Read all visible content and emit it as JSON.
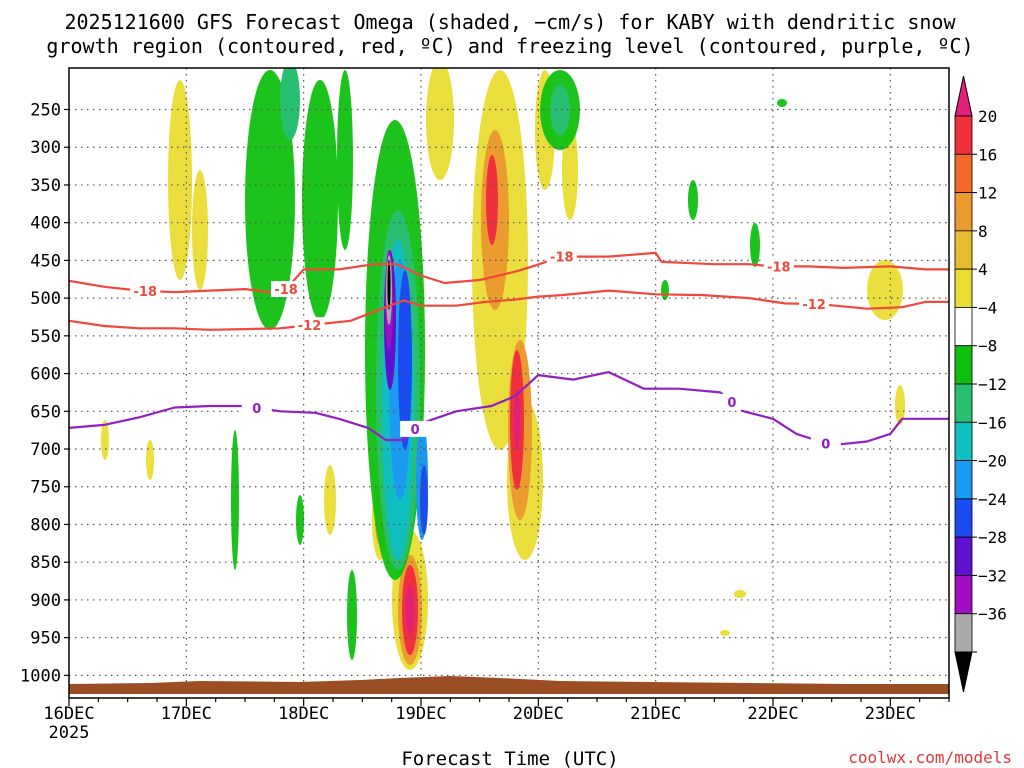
{
  "chart_data": {
    "type": "time-height contour",
    "title_line1": "2025121600 GFS Forecast Omega (shaded, −cm/s) for KABY with dendritic snow",
    "title_line2": "growth region (contoured, red, ºC) and freezing level (contoured, purple, ºC)",
    "xlabel": "Forecast Time (UTC)",
    "credit": "coolwx.com/models",
    "x_start_label_year": "2025",
    "x_ticks": [
      {
        "day": 0,
        "label": "16DEC"
      },
      {
        "day": 1,
        "label": "17DEC"
      },
      {
        "day": 2,
        "label": "18DEC"
      },
      {
        "day": 3,
        "label": "19DEC"
      },
      {
        "day": 4,
        "label": "20DEC"
      },
      {
        "day": 5,
        "label": "21DEC"
      },
      {
        "day": 6,
        "label": "22DEC"
      },
      {
        "day": 7,
        "label": "23DEC"
      }
    ],
    "xlim_days": [
      0,
      7.5
    ],
    "ylim_hpa": [
      1030,
      195
    ],
    "y_ticks": [
      250,
      300,
      350,
      400,
      450,
      500,
      550,
      600,
      650,
      700,
      750,
      800,
      850,
      900,
      950,
      1000
    ],
    "colorbar": {
      "labels": [
        "20",
        "16",
        "12",
        "8",
        "4",
        "−4",
        "−8",
        "−12",
        "−16",
        "−20",
        "−24",
        "−28",
        "−32",
        "−36"
      ],
      "colors": [
        "#f0303c",
        "#f26a2a",
        "#eb9c2e",
        "#e6bd2f",
        "#e9dd33",
        "#ffffff",
        "#10c010",
        "#28c070",
        "#10c0c0",
        "#1a9af0",
        "#1a4cf0",
        "#6010d0",
        "#a010c0",
        "#aaaaaa"
      ],
      "top_arrow_color": "#e0207a",
      "bottom_arrow_color": "#000000"
    },
    "contours": [
      {
        "name": "-18 C",
        "color": "#f0483c",
        "label": "-18",
        "label_days": [
          0.65,
          1.85,
          4.2,
          6.05
        ],
        "points": [
          [
            0,
            477
          ],
          [
            0.3,
            485
          ],
          [
            0.6,
            490
          ],
          [
            0.9,
            492
          ],
          [
            1.2,
            490
          ],
          [
            1.5,
            488
          ],
          [
            1.7,
            492
          ],
          [
            1.85,
            488
          ],
          [
            2.0,
            462
          ],
          [
            2.3,
            462
          ],
          [
            2.6,
            455
          ],
          [
            2.8,
            455
          ],
          [
            3.0,
            470
          ],
          [
            3.2,
            480
          ],
          [
            3.5,
            476
          ],
          [
            3.8,
            465
          ],
          [
            3.95,
            458
          ],
          [
            4.2,
            445
          ],
          [
            4.6,
            445
          ],
          [
            5.0,
            440
          ],
          [
            5.05,
            452
          ],
          [
            5.5,
            455
          ],
          [
            5.8,
            455
          ],
          [
            6.0,
            458
          ],
          [
            6.3,
            458
          ],
          [
            6.6,
            460
          ],
          [
            7.0,
            458
          ],
          [
            7.3,
            462
          ],
          [
            7.5,
            462
          ]
        ]
      },
      {
        "name": "-12 C",
        "color": "#f0483c",
        "label": "-12",
        "label_days": [
          2.05,
          6.35
        ],
        "points": [
          [
            0,
            530
          ],
          [
            0.3,
            537
          ],
          [
            0.6,
            540
          ],
          [
            0.9,
            540
          ],
          [
            1.2,
            542
          ],
          [
            1.5,
            541
          ],
          [
            1.8,
            540
          ],
          [
            2.1,
            535
          ],
          [
            2.4,
            530
          ],
          [
            2.6,
            518
          ],
          [
            2.85,
            503
          ],
          [
            3.0,
            510
          ],
          [
            3.3,
            510
          ],
          [
            3.55,
            505
          ],
          [
            3.8,
            502
          ],
          [
            4.0,
            498
          ],
          [
            4.2,
            496
          ],
          [
            4.6,
            490
          ],
          [
            5.0,
            495
          ],
          [
            5.4,
            496
          ],
          [
            5.8,
            500
          ],
          [
            6.1,
            507
          ],
          [
            6.4,
            508
          ],
          [
            6.8,
            514
          ],
          [
            7.1,
            512
          ],
          [
            7.3,
            505
          ],
          [
            7.5,
            505
          ]
        ]
      },
      {
        "name": "0 C",
        "color": "#9020c0",
        "label": "0",
        "label_days": [
          1.6,
          2.95,
          5.65,
          6.45
        ],
        "points": [
          [
            0,
            672
          ],
          [
            0.3,
            668
          ],
          [
            0.6,
            658
          ],
          [
            0.9,
            645
          ],
          [
            1.2,
            643
          ],
          [
            1.5,
            643
          ],
          [
            1.8,
            650
          ],
          [
            2.1,
            652
          ],
          [
            2.3,
            660
          ],
          [
            2.55,
            672
          ],
          [
            2.7,
            688
          ],
          [
            2.85,
            688
          ],
          [
            3.0,
            666
          ],
          [
            3.3,
            650
          ],
          [
            3.6,
            643
          ],
          [
            3.8,
            630
          ],
          [
            4.0,
            602
          ],
          [
            4.3,
            608
          ],
          [
            4.6,
            598
          ],
          [
            4.9,
            620
          ],
          [
            5.2,
            620
          ],
          [
            5.55,
            625
          ],
          [
            5.75,
            650
          ],
          [
            6.0,
            660
          ],
          [
            6.2,
            680
          ],
          [
            6.5,
            695
          ],
          [
            6.8,
            690
          ],
          [
            7.0,
            680
          ],
          [
            7.1,
            660
          ],
          [
            7.5,
            660
          ]
        ]
      }
    ]
  }
}
